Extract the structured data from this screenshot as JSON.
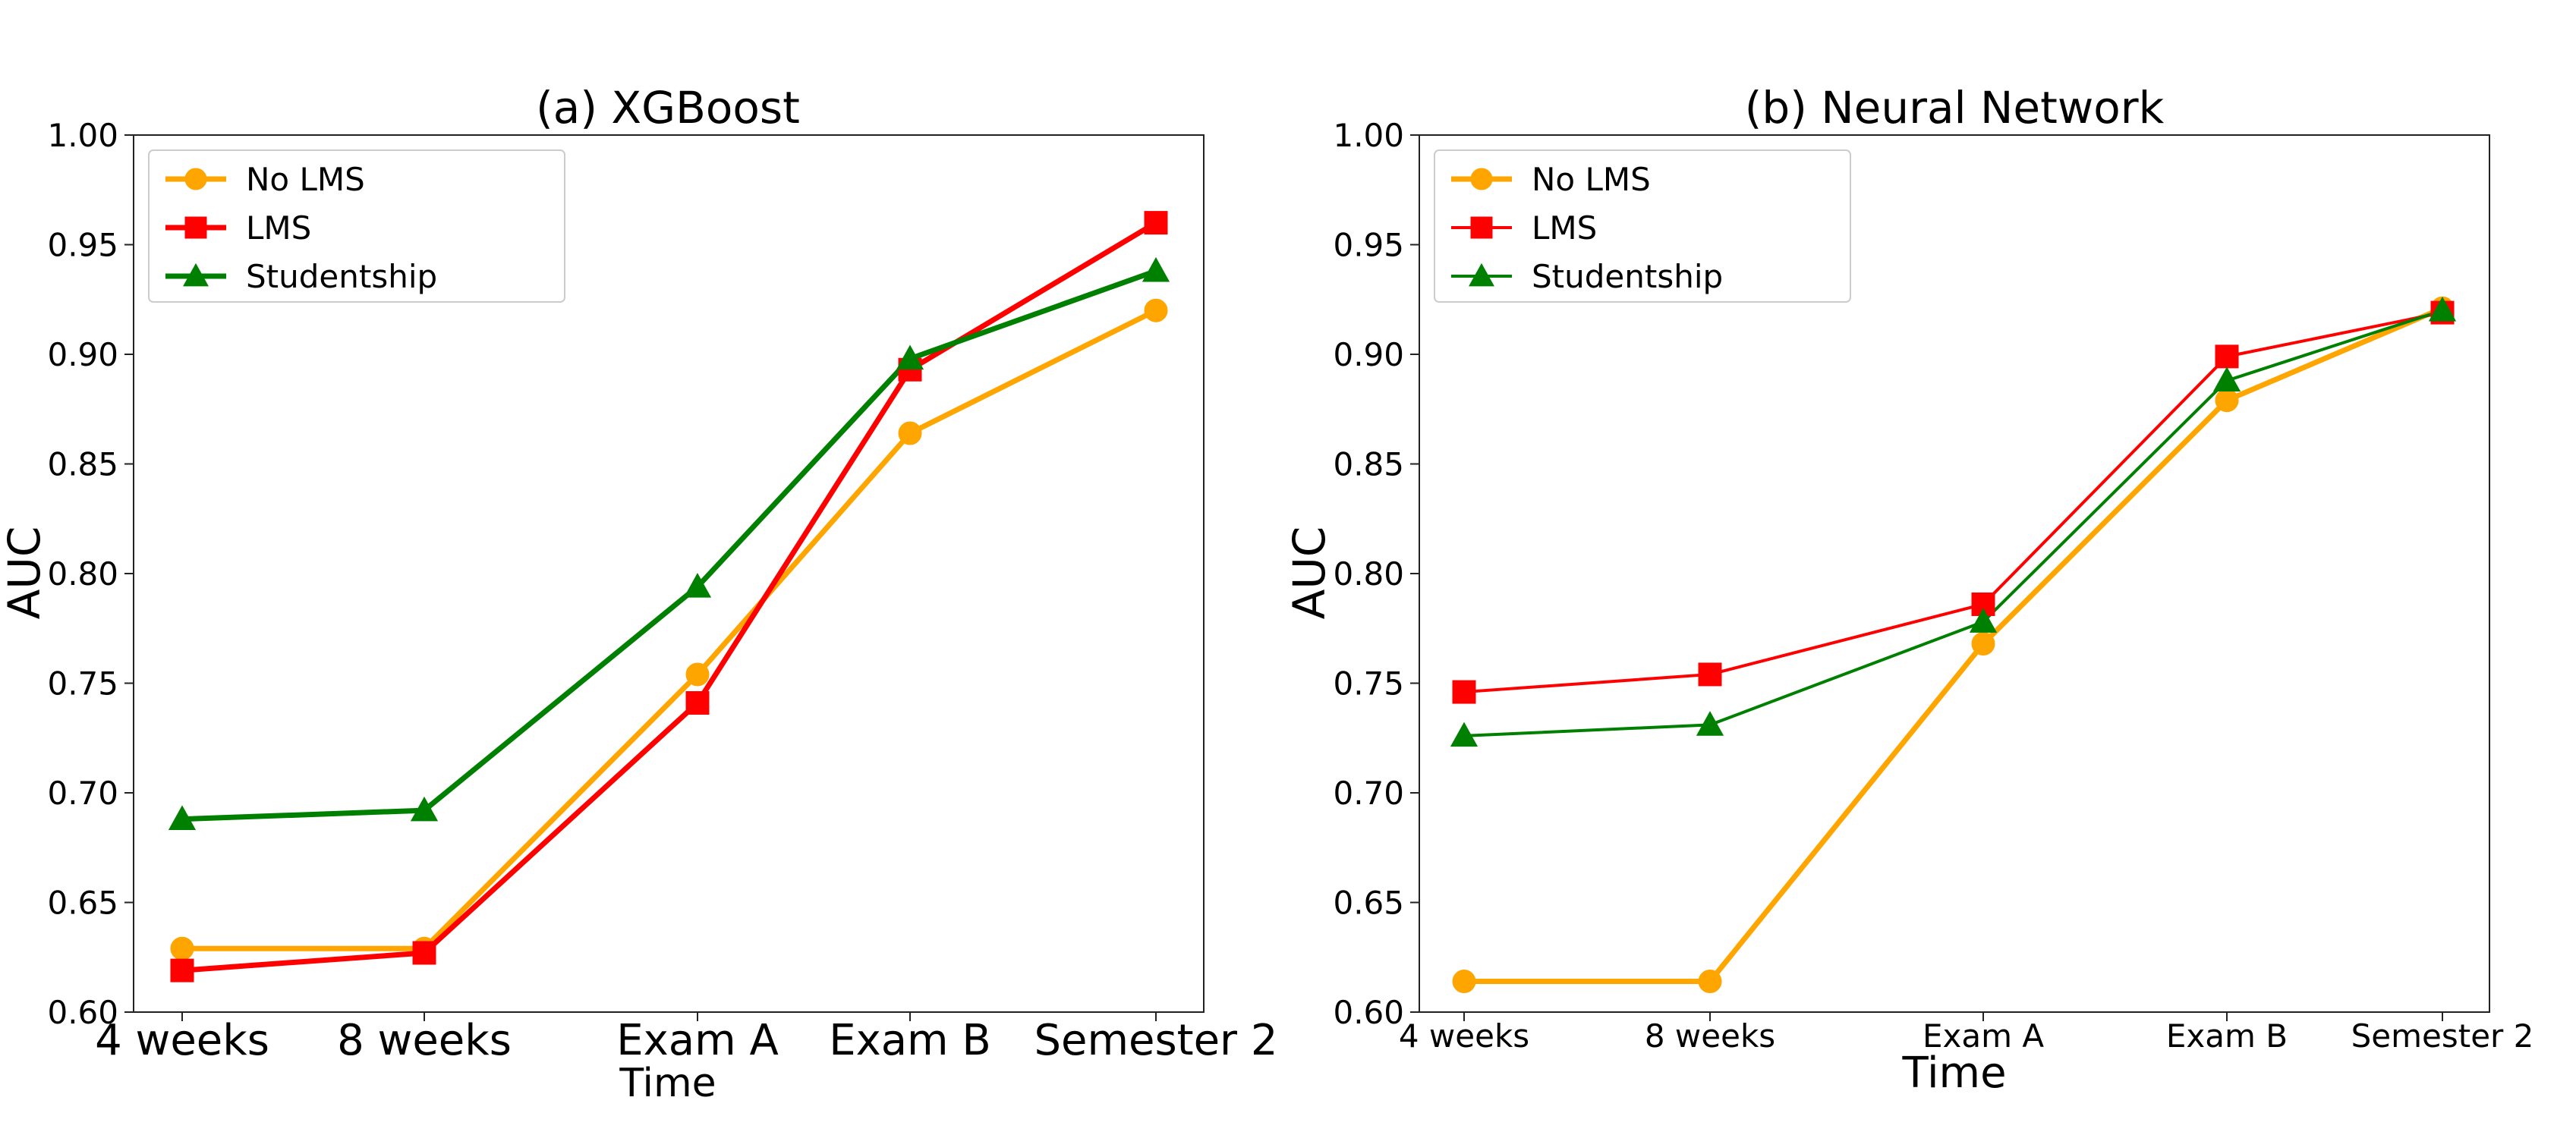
{
  "chart_data": [
    {
      "type": "line",
      "title": "(a) XGBoost",
      "xlabel": "Time",
      "ylabel": "AUC",
      "categories": [
        "4 weeks",
        "8 weeks",
        "Exam A",
        "Exam B",
        "Semester 2"
      ],
      "ylim": [
        0.6,
        1.0
      ],
      "yticks": [
        "0.60",
        "0.65",
        "0.70",
        "0.75",
        "0.80",
        "0.85",
        "0.90",
        "0.95",
        "1.00"
      ],
      "legend_position": "top-left",
      "series": [
        {
          "name": "No LMS",
          "color": "#FFA500",
          "marker": "circle",
          "values": [
            0.629,
            0.629,
            0.754,
            0.864,
            0.92
          ]
        },
        {
          "name": "LMS",
          "color": "#FF0000",
          "marker": "square",
          "values": [
            0.619,
            0.627,
            0.741,
            0.893,
            0.96
          ]
        },
        {
          "name": "Studentship",
          "color": "#008000",
          "marker": "triangle",
          "values": [
            0.688,
            0.692,
            0.794,
            0.898,
            0.938
          ]
        }
      ]
    },
    {
      "type": "line",
      "title": "(b) Neural Network",
      "xlabel": "Time",
      "ylabel": "AUC",
      "categories": [
        "4 weeks",
        "8 weeks",
        "Exam A",
        "Exam B",
        "Semester 2"
      ],
      "ylim": [
        0.6,
        1.0
      ],
      "yticks": [
        "0.60",
        "0.65",
        "0.70",
        "0.75",
        "0.80",
        "0.85",
        "0.90",
        "0.95",
        "1.00"
      ],
      "legend_position": "top-left",
      "series": [
        {
          "name": "No LMS",
          "color": "#FFA500",
          "marker": "circle",
          "values": [
            0.614,
            0.614,
            0.768,
            0.879,
            0.921
          ]
        },
        {
          "name": "LMS",
          "color": "#FF0000",
          "marker": "square",
          "values": [
            0.746,
            0.754,
            0.786,
            0.899,
            0.919
          ]
        },
        {
          "name": "Studentship",
          "color": "#008000",
          "marker": "triangle",
          "values": [
            0.726,
            0.731,
            0.778,
            0.888,
            0.92
          ]
        }
      ]
    }
  ]
}
